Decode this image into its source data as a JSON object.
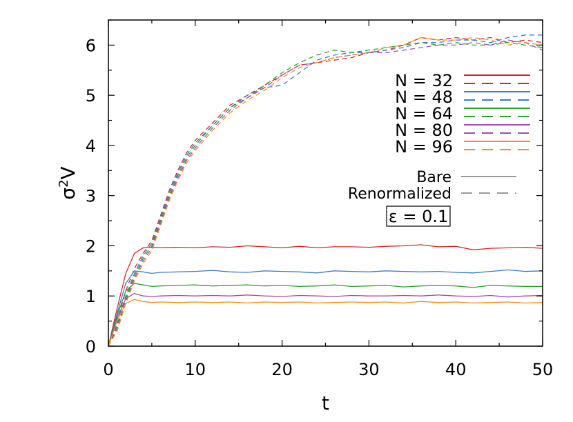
{
  "chart_data": {
    "type": "line",
    "xlabel": "t",
    "ylabel_base": "σ",
    "ylabel_sup": "2",
    "ylabel_tail": "V",
    "xlim": [
      0,
      50
    ],
    "ylim": [
      0,
      6.5
    ],
    "xticks": [
      0,
      10,
      20,
      30,
      40,
      50
    ],
    "yticks": [
      0,
      1,
      2,
      3,
      4,
      5,
      6
    ],
    "grid": false,
    "legend_position": "right",
    "annotation": "ε = 0.1",
    "style_legend": [
      {
        "label": "Bare",
        "dash": "solid"
      },
      {
        "label": "Renormalized",
        "dash": "dashed"
      }
    ],
    "series": [
      {
        "name": "N = 32",
        "color": "#d62728",
        "bare": {
          "x": [
            0,
            1,
            2,
            3,
            4,
            5,
            6,
            8,
            10,
            12,
            14,
            16,
            18,
            20,
            22,
            24,
            26,
            28,
            30,
            32,
            34,
            36,
            38,
            40,
            42,
            44,
            46,
            48,
            50
          ],
          "y": [
            0,
            0.75,
            1.45,
            1.85,
            1.96,
            1.97,
            1.96,
            1.97,
            1.96,
            1.98,
            1.97,
            2.0,
            1.98,
            1.96,
            1.99,
            1.96,
            1.98,
            1.98,
            1.97,
            1.99,
            2.0,
            2.02,
            1.98,
            1.99,
            1.92,
            1.95,
            1.96,
            1.97,
            1.95
          ]
        },
        "renormalized": {
          "x": [
            0,
            1,
            2,
            3,
            4,
            5,
            6,
            7,
            8,
            9,
            10,
            12,
            14,
            16,
            18,
            20,
            22,
            24,
            26,
            28,
            30,
            32,
            34,
            36,
            38,
            40,
            42,
            44,
            46,
            48,
            50
          ],
          "y": [
            0,
            0.5,
            1.1,
            1.55,
            1.85,
            2.1,
            2.6,
            3.1,
            3.5,
            3.85,
            4.1,
            4.45,
            4.8,
            5.0,
            5.2,
            5.4,
            5.6,
            5.65,
            5.7,
            5.75,
            5.85,
            5.9,
            6.0,
            6.15,
            6.1,
            6.15,
            6.1,
            6.15,
            6.05,
            6.1,
            6.05
          ]
        }
      },
      {
        "name": "N = 48",
        "color": "#3a7bc8",
        "bare": {
          "x": [
            0,
            1,
            2,
            3,
            4,
            5,
            6,
            8,
            10,
            12,
            14,
            16,
            18,
            20,
            22,
            24,
            26,
            28,
            30,
            32,
            34,
            36,
            38,
            40,
            42,
            44,
            46,
            48,
            50
          ],
          "y": [
            0,
            0.65,
            1.25,
            1.5,
            1.48,
            1.45,
            1.47,
            1.48,
            1.49,
            1.51,
            1.48,
            1.47,
            1.5,
            1.49,
            1.48,
            1.46,
            1.5,
            1.49,
            1.48,
            1.5,
            1.49,
            1.48,
            1.49,
            1.47,
            1.46,
            1.49,
            1.52,
            1.49,
            1.5
          ]
        },
        "renormalized": {
          "x": [
            0,
            1,
            2,
            3,
            4,
            5,
            6,
            7,
            8,
            9,
            10,
            12,
            14,
            16,
            18,
            20,
            22,
            24,
            26,
            28,
            30,
            32,
            34,
            36,
            38,
            40,
            42,
            44,
            46,
            48,
            50
          ],
          "y": [
            0,
            0.45,
            1.0,
            1.45,
            1.8,
            2.05,
            2.55,
            3.05,
            3.45,
            3.8,
            4.05,
            4.4,
            4.75,
            5.0,
            5.15,
            5.2,
            5.45,
            5.7,
            5.8,
            5.85,
            5.85,
            5.9,
            5.95,
            6.05,
            6.05,
            6.1,
            6.1,
            6.05,
            6.15,
            6.2,
            6.2
          ]
        }
      },
      {
        "name": "N = 64",
        "color": "#2ca02c",
        "bare": {
          "x": [
            0,
            1,
            2,
            3,
            4,
            5,
            6,
            8,
            10,
            12,
            14,
            16,
            18,
            20,
            22,
            24,
            26,
            28,
            30,
            32,
            34,
            36,
            38,
            40,
            42,
            44,
            46,
            48,
            50
          ],
          "y": [
            0,
            0.6,
            1.1,
            1.25,
            1.22,
            1.19,
            1.2,
            1.21,
            1.22,
            1.2,
            1.21,
            1.22,
            1.2,
            1.21,
            1.19,
            1.2,
            1.22,
            1.19,
            1.2,
            1.21,
            1.18,
            1.2,
            1.21,
            1.2,
            1.17,
            1.21,
            1.2,
            1.19,
            1.19
          ]
        },
        "renormalized": {
          "x": [
            0,
            1,
            2,
            3,
            4,
            5,
            6,
            7,
            8,
            9,
            10,
            12,
            14,
            16,
            18,
            20,
            22,
            24,
            26,
            28,
            30,
            32,
            34,
            36,
            38,
            40,
            42,
            44,
            46,
            48,
            50
          ],
          "y": [
            0,
            0.4,
            0.95,
            1.4,
            1.75,
            2.0,
            2.5,
            3.0,
            3.4,
            3.75,
            4.0,
            4.4,
            4.75,
            4.95,
            5.2,
            5.45,
            5.65,
            5.8,
            5.9,
            5.85,
            5.9,
            5.95,
            6.0,
            6.05,
            6.0,
            6.05,
            6.0,
            6.0,
            6.05,
            6.0,
            5.95
          ]
        }
      },
      {
        "name": "N = 80",
        "color": "#9b4fb5",
        "bare": {
          "x": [
            0,
            1,
            2,
            3,
            4,
            5,
            6,
            8,
            10,
            12,
            14,
            16,
            18,
            20,
            22,
            24,
            26,
            28,
            30,
            32,
            34,
            36,
            38,
            40,
            42,
            44,
            46,
            48,
            50
          ],
          "y": [
            0,
            0.55,
            0.95,
            1.05,
            1.0,
            0.99,
            1.0,
            1.01,
            1.0,
            1.01,
            1.0,
            1.02,
            1.0,
            0.99,
            1.01,
            1.0,
            0.99,
            1.01,
            1.0,
            1.0,
            1.01,
            1.0,
            1.02,
            1.0,
            0.99,
            1.01,
            0.98,
            1.0,
            1.01
          ]
        },
        "renormalized": {
          "x": [
            0,
            1,
            2,
            3,
            4,
            5,
            6,
            7,
            8,
            9,
            10,
            12,
            14,
            16,
            18,
            20,
            22,
            24,
            26,
            28,
            30,
            32,
            34,
            36,
            38,
            40,
            42,
            44,
            46,
            48,
            50
          ],
          "y": [
            0,
            0.35,
            0.9,
            1.35,
            1.7,
            1.95,
            2.45,
            2.95,
            3.35,
            3.7,
            3.95,
            4.35,
            4.7,
            4.95,
            5.15,
            5.4,
            5.6,
            5.65,
            5.75,
            5.8,
            5.85,
            5.85,
            5.9,
            5.95,
            6.0,
            6.0,
            6.05,
            6.0,
            6.1,
            6.05,
            5.9
          ]
        }
      },
      {
        "name": "N = 96",
        "color": "#f28e1c",
        "bare": {
          "x": [
            0,
            1,
            2,
            3,
            4,
            5,
            6,
            8,
            10,
            12,
            14,
            16,
            18,
            20,
            22,
            24,
            26,
            28,
            30,
            32,
            34,
            36,
            38,
            40,
            42,
            44,
            46,
            48,
            50
          ],
          "y": [
            0,
            0.5,
            0.85,
            0.93,
            0.89,
            0.87,
            0.88,
            0.87,
            0.88,
            0.87,
            0.88,
            0.86,
            0.88,
            0.87,
            0.88,
            0.86,
            0.87,
            0.88,
            0.87,
            0.88,
            0.86,
            0.89,
            0.87,
            0.88,
            0.86,
            0.87,
            0.88,
            0.86,
            0.87
          ]
        },
        "renormalized": {
          "x": [
            0,
            1,
            2,
            3,
            4,
            5,
            6,
            7,
            8,
            9,
            10,
            12,
            14,
            16,
            18,
            20,
            22,
            24,
            26,
            28,
            30,
            32,
            34,
            36,
            38,
            40,
            42,
            44,
            46,
            48,
            50
          ],
          "y": [
            0,
            0.3,
            0.85,
            1.3,
            1.65,
            1.9,
            2.4,
            2.9,
            3.3,
            3.65,
            3.9,
            4.3,
            4.65,
            4.9,
            5.1,
            5.35,
            5.55,
            5.65,
            5.75,
            5.8,
            5.85,
            5.95,
            6.0,
            6.15,
            6.1,
            6.1,
            6.15,
            6.1,
            6.0,
            6.05,
            6.0
          ]
        }
      }
    ]
  }
}
